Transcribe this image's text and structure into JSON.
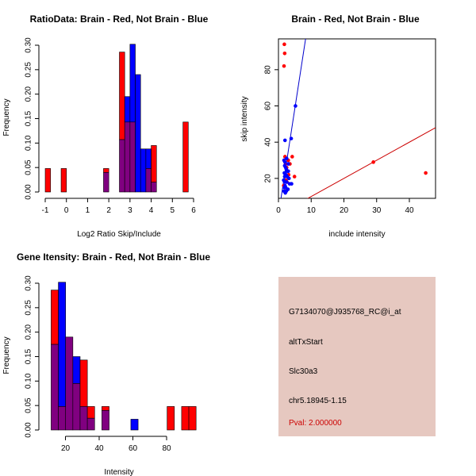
{
  "colors": {
    "red": "#ff0000",
    "blue": "#0000ff",
    "overlap": "#800080",
    "panel_bg": "#e6c8c0",
    "pval_text": "#cc0000",
    "line_blue": "#0000cc",
    "line_red": "#cc0000"
  },
  "chart_data": [
    {
      "id": "ratio",
      "type": "bar",
      "title": "RatioData: Brain - Red, Not Brain - Blue",
      "xlabel": "Log2 Ratio Skip/Include",
      "ylabel": "Frequency",
      "xlim": [
        -1,
        6
      ],
      "ylim": [
        0,
        0.3
      ],
      "xticks": [
        -1,
        0,
        1,
        2,
        3,
        4,
        5,
        6
      ],
      "xtick_labels": [
        "-1",
        "0",
        "1",
        "2",
        "3",
        "4",
        "5",
        "6"
      ],
      "yticks": [
        0,
        0.05,
        0.1,
        0.15,
        0.2,
        0.25,
        0.3
      ],
      "ytick_labels": [
        "0.00",
        "0.05",
        "0.10",
        "0.15",
        "0.20",
        "0.25",
        "0.30"
      ],
      "bin_width": 0.25,
      "bin_starts": [
        -1,
        -0.25,
        1.75,
        2.5,
        2.75,
        3,
        3.25,
        3.5,
        3.75,
        4,
        4.25,
        5.5
      ],
      "series": [
        {
          "name": "Brain",
          "color": "red",
          "values": [
            0.048,
            0.048,
            0.048,
            0.286,
            0.143,
            0.143,
            0.0,
            0.0,
            0.048,
            0.095,
            0.0,
            0.143
          ]
        },
        {
          "name": "Not Brain",
          "color": "blue",
          "values": [
            0.0,
            0.0,
            0.04,
            0.107,
            0.195,
            0.302,
            0.24,
            0.088,
            0.088,
            0.02,
            0.0,
            0.0
          ]
        }
      ]
    },
    {
      "id": "scatter",
      "type": "scatter",
      "title": "Brain - Red, Not Brain - Blue",
      "xlabel": "include intensity",
      "ylabel": "skip intensity",
      "xlim": [
        0,
        48
      ],
      "ylim": [
        9,
        97
      ],
      "xticks": [
        0,
        10,
        20,
        30,
        40
      ],
      "xtick_labels": [
        "0",
        "10",
        "20",
        "30",
        "40"
      ],
      "yticks": [
        20,
        40,
        60,
        80
      ],
      "ytick_labels": [
        "20",
        "40",
        "60",
        "80"
      ],
      "series": [
        {
          "name": "Brain",
          "color": "red",
          "x": [
            1.8,
            1.9,
            1.7,
            2.0,
            2.2,
            2.5,
            3.1,
            3.5,
            4.2,
            4.9,
            29,
            45,
            2.3,
            2.8,
            1.6,
            2.1,
            3.0,
            2.6
          ],
          "y": [
            94,
            89,
            82,
            32,
            28,
            26,
            22,
            28,
            32,
            21,
            29,
            23,
            19,
            24,
            16,
            13,
            30,
            18
          ]
        },
        {
          "name": "Not Brain",
          "color": "blue",
          "x": [
            5.2,
            2.0,
            3.9,
            1.7,
            2.0,
            1.9,
            2.2,
            2.4,
            2.6,
            3.0,
            1.8,
            2.1,
            2.3,
            2.7,
            3.2,
            1.6,
            1.9,
            2.5,
            4.0,
            3.4,
            2.0,
            1.8,
            2.2,
            2.9,
            2.4,
            1.7,
            2.1,
            3.0,
            2.5,
            1.9
          ],
          "y": [
            60,
            41,
            42,
            30,
            29,
            27,
            26,
            25,
            24,
            24,
            23,
            22,
            22,
            21,
            20,
            19,
            18,
            18,
            17,
            17,
            16,
            15,
            15,
            14,
            13,
            13,
            12,
            28,
            31,
            21
          ]
        }
      ],
      "lines": [
        {
          "color": "line_blue",
          "slope": 11.7,
          "intercept": 0
        },
        {
          "color": "line_red",
          "slope": 1.0,
          "intercept": 0
        }
      ]
    },
    {
      "id": "intensity",
      "type": "bar",
      "title": "Gene Itensity: Brain - Red, Not Brain - Blue",
      "xlabel": "Intensity",
      "ylabel": "Frequency",
      "xlim": [
        8,
        96
      ],
      "ylim": [
        0,
        0.3
      ],
      "xticks": [
        20,
        40,
        60,
        80
      ],
      "xtick_labels": [
        "20",
        "40",
        "60",
        "80"
      ],
      "yticks": [
        0,
        0.05,
        0.1,
        0.15,
        0.2,
        0.25,
        0.3
      ],
      "ytick_labels": [
        "0.00",
        "0.05",
        "0.10",
        "0.15",
        "0.20",
        "0.25",
        "0.30"
      ],
      "bin_width": 4.3,
      "bin_starts": [
        11.5,
        15.8,
        20.1,
        24.4,
        28.7,
        33.0,
        41.6,
        58.8,
        80.3,
        88.9,
        93.2
      ],
      "series": [
        {
          "name": "Brain",
          "color": "red",
          "values": [
            0.286,
            0.048,
            0.19,
            0.095,
            0.143,
            0.048,
            0.048,
            0.0,
            0.048,
            0.048,
            0.048
          ]
        },
        {
          "name": "Not Brain",
          "color": "blue",
          "values": [
            0.175,
            0.302,
            0.19,
            0.15,
            0.048,
            0.024,
            0.04,
            0.022,
            0.0,
            0.0,
            0.0
          ]
        }
      ]
    }
  ],
  "info_panel": {
    "probe": "G7134070@J935768_RC@i_at",
    "event": "altTxStart",
    "gene": "Slc30a3",
    "location": "chr5.18945-1.15",
    "pval": "Pval: 2.000000"
  }
}
